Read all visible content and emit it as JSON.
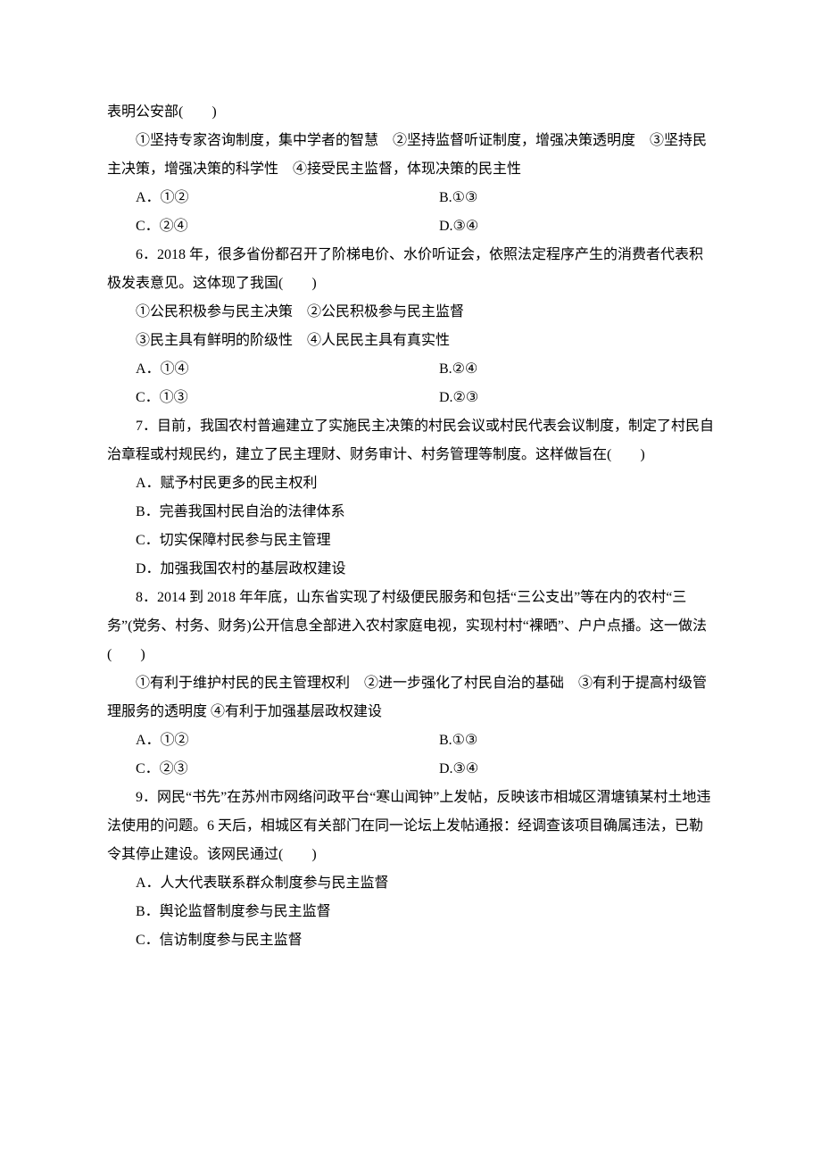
{
  "q5": {
    "cont": "表明公安部(　　)",
    "stmts": "①坚持专家咨询制度，集中学者的智慧　②坚持监督听证制度，增强决策透明度　③坚持民主决策，增强决策的科学性　④接受民主监督，体现决策的民主性",
    "A": "A．①②",
    "B": "B.①③",
    "C": "C．②④",
    "D": "D.③④"
  },
  "q6": {
    "stem": "6．2018 年，很多省份都召开了阶梯电价、水价听证会，依照法定程序产生的消费者代表积极发表意见。这体现了我国(　　)",
    "s1": "①公民积极参与民主决策　②公民积极参与民主监督",
    "s2": "③民主具有鲜明的阶级性　④人民民主具有真实性",
    "A": "A．①④",
    "B": "B.②④",
    "C": "C．①③",
    "D": "D.②③"
  },
  "q7": {
    "stem": "7．目前，我国农村普遍建立了实施民主决策的村民会议或村民代表会议制度，制定了村民自治章程或村规民约，建立了民主理财、财务审计、村务管理等制度。这样做旨在(　　)",
    "A": "A．赋予村民更多的民主权利",
    "B": "B．完善我国村民自治的法律体系",
    "C": "C．切实保障村民参与民主管理",
    "D": "D．加强我国农村的基层政权建设"
  },
  "q8": {
    "stem": "8．2014 到 2018 年年底，山东省实现了村级便民服务和包括“三公支出”等在内的农村“三务”(党务、村务、财务)公开信息全部进入农村家庭电视，实现村村“裸晒”、户户点播。这一做法(　　)",
    "stmts": "①有利于维护村民的民主管理权利　②进一步强化了村民自治的基础　③有利于提高村级管理服务的透明度 ④有利于加强基层政权建设",
    "A": "A．①②",
    "B": "B.①③",
    "C": "C．②③",
    "D": "D.③④"
  },
  "q9": {
    "stem": "9．网民“书先”在苏州市网络问政平台“寒山闻钟”上发帖，反映该市相城区渭塘镇某村土地违法使用的问题。6 天后，相城区有关部门在同一论坛上发帖通报：经调查该项目确属违法，已勒令其停止建设。该网民通过(　　)",
    "A": "A．人大代表联系群众制度参与民主监督",
    "B": "B．舆论监督制度参与民主监督",
    "C": "C．信访制度参与民主监督"
  }
}
